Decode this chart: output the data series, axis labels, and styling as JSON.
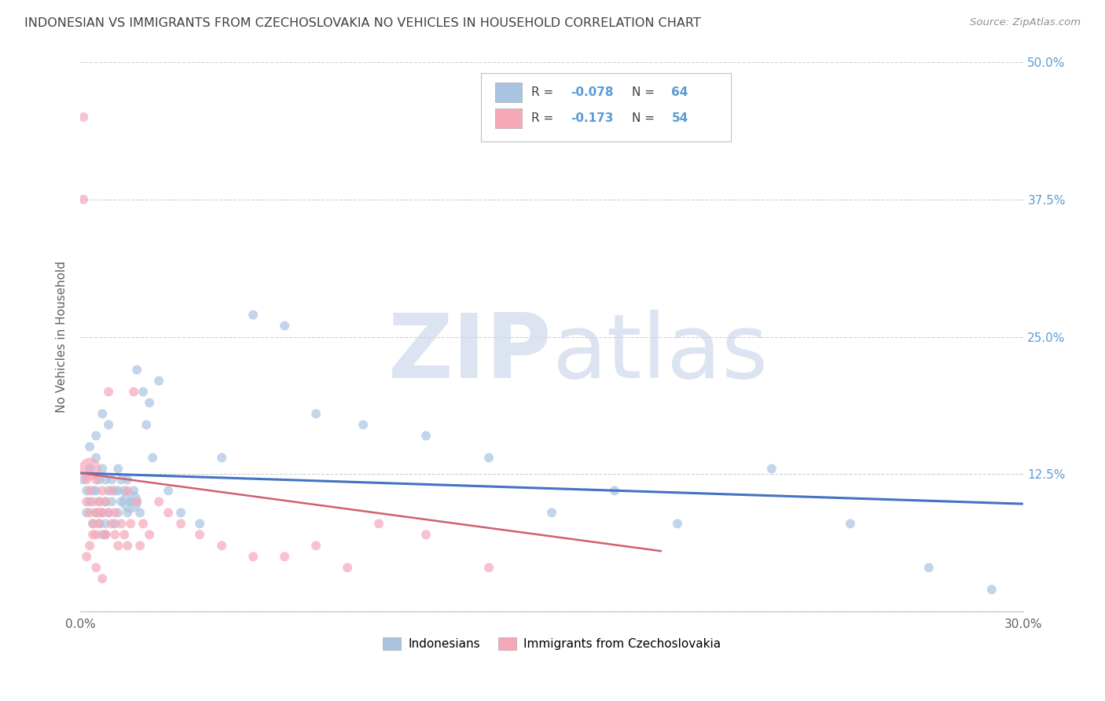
{
  "title": "INDONESIAN VS IMMIGRANTS FROM CZECHOSLOVAKIA NO VEHICLES IN HOUSEHOLD CORRELATION CHART",
  "source": "Source: ZipAtlas.com",
  "ylabel": "No Vehicles in Household",
  "watermark_zip": "ZIP",
  "watermark_atlas": "atlas",
  "xlim": [
    0.0,
    0.3
  ],
  "ylim": [
    0.0,
    0.5
  ],
  "xtick_positions": [
    0.0,
    0.05,
    0.1,
    0.15,
    0.2,
    0.25,
    0.3
  ],
  "xticklabels": [
    "0.0%",
    "",
    "",
    "",
    "",
    "",
    "30.0%"
  ],
  "ytick_positions": [
    0.0,
    0.125,
    0.25,
    0.375,
    0.5
  ],
  "yticklabels_right": [
    "",
    "12.5%",
    "25.0%",
    "37.5%",
    "50.0%"
  ],
  "legend_labels": [
    "Indonesians",
    "Immigrants from Czechoslovakia"
  ],
  "blue_R": "-0.078",
  "blue_N": "64",
  "pink_R": "-0.173",
  "pink_N": "54",
  "blue_color": "#a8c4e0",
  "pink_color": "#f4a8b8",
  "blue_line_color": "#4472c4",
  "pink_line_color": "#d06070",
  "background_color": "#ffffff",
  "grid_color": "#d0d0d0",
  "title_color": "#404040",
  "right_tick_color": "#5b9bd5",
  "blue_line_x": [
    0.0,
    0.3
  ],
  "blue_line_y": [
    0.126,
    0.098
  ],
  "pink_line_x": [
    0.0,
    0.185
  ],
  "pink_line_y": [
    0.126,
    0.055
  ],
  "blue_x": [
    0.001,
    0.002,
    0.002,
    0.003,
    0.003,
    0.004,
    0.004,
    0.005,
    0.005,
    0.005,
    0.006,
    0.006,
    0.006,
    0.007,
    0.007,
    0.007,
    0.008,
    0.008,
    0.008,
    0.009,
    0.009,
    0.01,
    0.01,
    0.011,
    0.011,
    0.012,
    0.012,
    0.013,
    0.013,
    0.014,
    0.015,
    0.015,
    0.016,
    0.017,
    0.018,
    0.019,
    0.02,
    0.021,
    0.022,
    0.023,
    0.025,
    0.028,
    0.032,
    0.038,
    0.045,
    0.055,
    0.065,
    0.075,
    0.09,
    0.11,
    0.13,
    0.15,
    0.17,
    0.19,
    0.22,
    0.245,
    0.27,
    0.29,
    0.003,
    0.005,
    0.007,
    0.009,
    0.012,
    0.016
  ],
  "blue_y": [
    0.12,
    0.09,
    0.11,
    0.1,
    0.13,
    0.08,
    0.11,
    0.09,
    0.11,
    0.14,
    0.08,
    0.1,
    0.12,
    0.07,
    0.09,
    0.13,
    0.08,
    0.1,
    0.12,
    0.09,
    0.11,
    0.1,
    0.12,
    0.08,
    0.11,
    0.09,
    0.11,
    0.1,
    0.12,
    0.11,
    0.09,
    0.12,
    0.1,
    0.11,
    0.22,
    0.09,
    0.2,
    0.17,
    0.19,
    0.14,
    0.21,
    0.11,
    0.09,
    0.08,
    0.14,
    0.27,
    0.26,
    0.18,
    0.17,
    0.16,
    0.14,
    0.09,
    0.11,
    0.08,
    0.13,
    0.08,
    0.04,
    0.02,
    0.15,
    0.16,
    0.18,
    0.17,
    0.13,
    0.1
  ],
  "blue_sizes": [
    75,
    75,
    75,
    75,
    75,
    75,
    75,
    75,
    75,
    75,
    75,
    75,
    75,
    75,
    75,
    75,
    75,
    75,
    75,
    75,
    75,
    75,
    75,
    75,
    75,
    75,
    75,
    75,
    75,
    75,
    75,
    75,
    75,
    75,
    75,
    75,
    75,
    75,
    75,
    75,
    75,
    75,
    75,
    75,
    75,
    75,
    75,
    75,
    75,
    75,
    75,
    75,
    75,
    75,
    75,
    75,
    75,
    75,
    75,
    75,
    75,
    75,
    75,
    400
  ],
  "pink_x": [
    0.001,
    0.001,
    0.002,
    0.002,
    0.003,
    0.003,
    0.004,
    0.004,
    0.005,
    0.005,
    0.005,
    0.006,
    0.006,
    0.007,
    0.007,
    0.008,
    0.008,
    0.009,
    0.009,
    0.01,
    0.01,
    0.011,
    0.011,
    0.012,
    0.013,
    0.014,
    0.015,
    0.016,
    0.017,
    0.018,
    0.019,
    0.02,
    0.022,
    0.025,
    0.028,
    0.032,
    0.038,
    0.045,
    0.055,
    0.065,
    0.075,
    0.085,
    0.095,
    0.11,
    0.13,
    0.015,
    0.003,
    0.004,
    0.006,
    0.008,
    0.002,
    0.003,
    0.005,
    0.007
  ],
  "pink_y": [
    0.45,
    0.375,
    0.12,
    0.1,
    0.09,
    0.11,
    0.08,
    0.1,
    0.07,
    0.09,
    0.12,
    0.08,
    0.1,
    0.09,
    0.11,
    0.07,
    0.1,
    0.2,
    0.09,
    0.08,
    0.11,
    0.07,
    0.09,
    0.06,
    0.08,
    0.07,
    0.06,
    0.08,
    0.2,
    0.1,
    0.06,
    0.08,
    0.07,
    0.1,
    0.09,
    0.08,
    0.07,
    0.06,
    0.05,
    0.05,
    0.06,
    0.04,
    0.08,
    0.07,
    0.04,
    0.11,
    0.13,
    0.07,
    0.09,
    0.07,
    0.05,
    0.06,
    0.04,
    0.03
  ],
  "pink_sizes": [
    75,
    75,
    75,
    75,
    75,
    75,
    75,
    75,
    75,
    75,
    75,
    75,
    75,
    75,
    75,
    75,
    75,
    75,
    75,
    75,
    75,
    75,
    75,
    75,
    75,
    75,
    75,
    75,
    75,
    75,
    75,
    75,
    75,
    75,
    75,
    75,
    75,
    75,
    75,
    75,
    75,
    75,
    75,
    75,
    75,
    75,
    400,
    75,
    75,
    75,
    75,
    75,
    75,
    75
  ]
}
